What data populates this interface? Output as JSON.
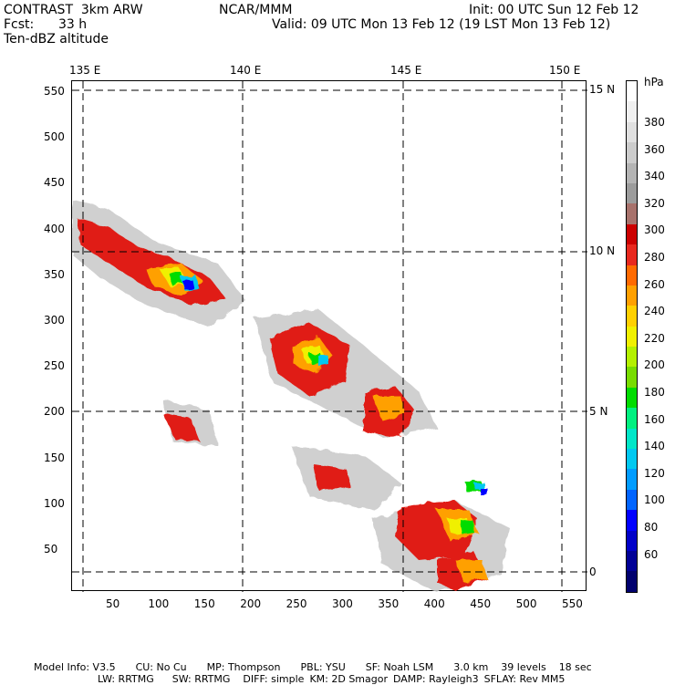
{
  "header": {
    "model": "CONTRAST  3km ARW",
    "center": "NCAR/MMM",
    "init": "Init: 00 UTC Sun 12 Feb 12",
    "fcst_label": "Fcst:",
    "fcst_value": "33 h",
    "valid": "Valid: 09 UTC Mon 13 Feb 12 (19 LST Mon 13 Feb 12)",
    "field": "Ten-dBZ altitude"
  },
  "map": {
    "lon_labels": [
      "135 E",
      "140 E",
      "145 E",
      "150 E"
    ],
    "lat_labels": [
      "15 N",
      "10 N",
      "5 N",
      "0"
    ],
    "grid_y_labels": [
      "550",
      "500",
      "450",
      "400",
      "350",
      "300",
      "250",
      "200",
      "150",
      "100",
      "50"
    ],
    "grid_x_labels": [
      "50",
      "100",
      "150",
      "200",
      "250",
      "300",
      "350",
      "400",
      "450",
      "500",
      "550"
    ]
  },
  "colorbar": {
    "unit": "hPa",
    "labels": [
      "380",
      "360",
      "340",
      "320",
      "300",
      "280",
      "260",
      "240",
      "220",
      "200",
      "180",
      "160",
      "140",
      "120",
      "100",
      "80",
      "60"
    ],
    "colors": [
      "#ffffff",
      "#f0f0f0",
      "#e0e0e0",
      "#cccccc",
      "#b4b4b4",
      "#9c9c9c",
      "#a8726c",
      "#cc0000",
      "#e8281e",
      "#ff6a00",
      "#ffa000",
      "#ffd000",
      "#f0f000",
      "#b4f000",
      "#78dc00",
      "#00dc00",
      "#00f080",
      "#00e6c8",
      "#00c8f0",
      "#009cff",
      "#0064ff",
      "#0000ff",
      "#0000c8",
      "#000096",
      "#00006e"
    ]
  },
  "footer": {
    "line1_items": [
      "Model Info: V3.5",
      "CU: No Cu",
      "MP: Thompson",
      "PBL: YSU",
      "SF: Noah LSM",
      "3.0 km",
      "39 levels",
      "18 sec"
    ],
    "line2_items": [
      "LW: RRTMG",
      "SW: RRTMG",
      "DIFF: simple",
      "KM: 2D Smagor",
      "DAMP: Rayleigh3",
      "SFLAY: Rev MM5"
    ]
  }
}
